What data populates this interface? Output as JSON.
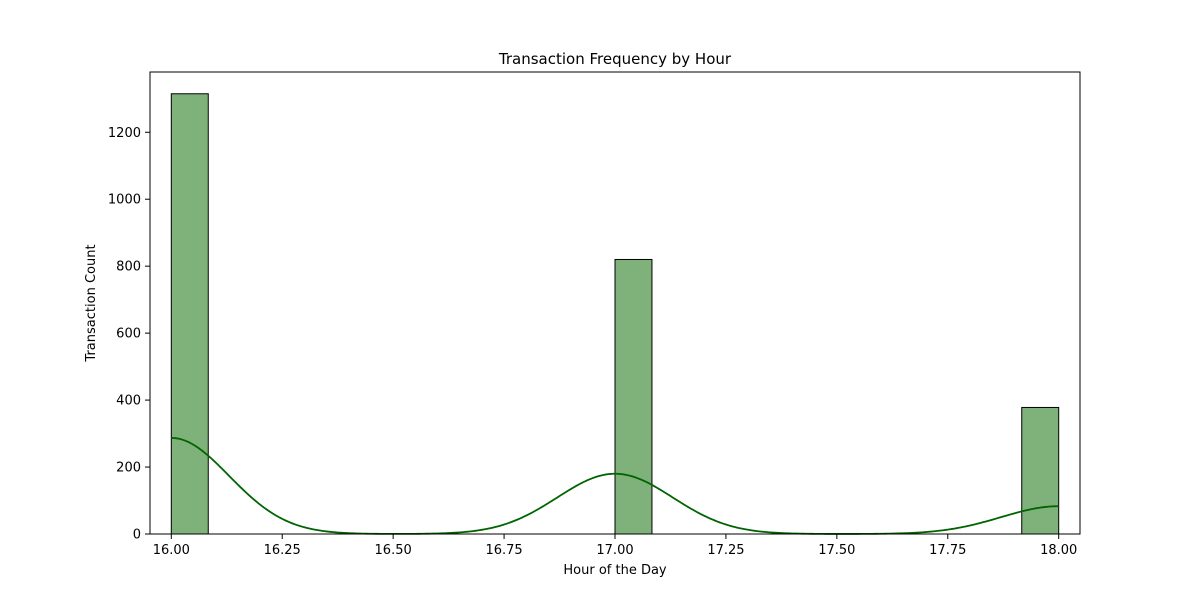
{
  "chart_data": {
    "type": "bar",
    "title": "Transaction Frequency by Hour",
    "xlabel": "Hour of the Day",
    "ylabel": "Transaction Count",
    "xlim": [
      15.952,
      18.048
    ],
    "ylim": [
      0,
      1380
    ],
    "x_ticks": [
      16.0,
      16.25,
      16.5,
      16.75,
      17.0,
      17.25,
      17.5,
      17.75,
      18.0
    ],
    "x_tick_labels": [
      "16.00",
      "16.25",
      "16.50",
      "16.75",
      "17.00",
      "17.25",
      "17.50",
      "17.75",
      "18.00"
    ],
    "y_ticks": [
      0,
      200,
      400,
      600,
      800,
      1000,
      1200
    ],
    "y_tick_labels": [
      "0",
      "200",
      "400",
      "600",
      "800",
      "1000",
      "1200"
    ],
    "grid": false,
    "legend": "none",
    "bar_color": "#7fb17a",
    "bar_edge_color": "#000000",
    "kde_color": "#006400",
    "bars": [
      {
        "x_start": 16.0,
        "x_end": 16.0833,
        "value": 1315
      },
      {
        "x_start": 17.0,
        "x_end": 17.0833,
        "value": 820
      },
      {
        "x_start": 17.9167,
        "x_end": 18.0,
        "value": 378
      }
    ],
    "kde_components": [
      {
        "center": 16.0,
        "peak": 287,
        "sigma": 0.13
      },
      {
        "center": 17.0,
        "peak": 180,
        "sigma": 0.13
      },
      {
        "center": 18.0,
        "peak": 83,
        "sigma": 0.13
      }
    ],
    "kde_range": [
      16.0,
      18.0
    ]
  }
}
